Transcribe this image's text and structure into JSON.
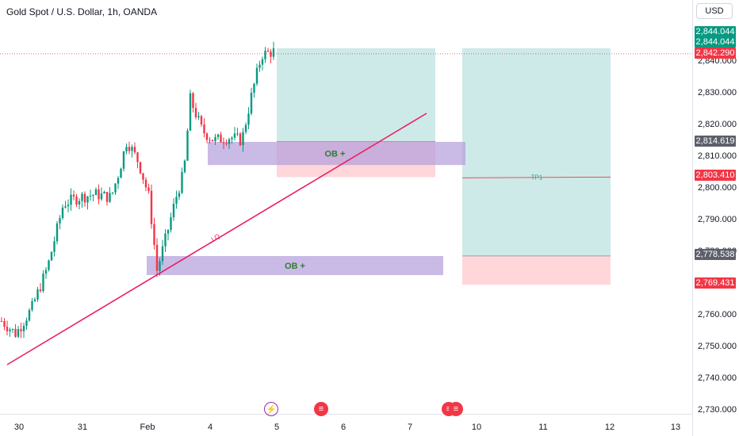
{
  "header": {
    "title": "Gold Spot / U.S. Dollar, 1h, OANDA",
    "currency": "USD"
  },
  "chart_data": {
    "type": "candlestick",
    "y_axis": {
      "range": [
        2726,
        2848
      ],
      "ticks": [
        {
          "value": 2840,
          "label": "2,840.000"
        },
        {
          "value": 2830,
          "label": "2,830.000"
        },
        {
          "value": 2820,
          "label": "2,820.000"
        },
        {
          "value": 2810,
          "label": "2,810.000"
        },
        {
          "value": 2800,
          "label": "2,800.000"
        },
        {
          "value": 2790,
          "label": "2,790.000"
        },
        {
          "value": 2780,
          "label": "2,780.000"
        },
        {
          "value": 2760,
          "label": "2,760.000"
        },
        {
          "value": 2750,
          "label": "2,750.000"
        },
        {
          "value": 2740,
          "label": "2,740.000"
        },
        {
          "value": 2730,
          "label": "2,730.000"
        }
      ]
    },
    "x_axis": {
      "ticks": [
        "30",
        "31",
        "Feb",
        "4",
        "5",
        "6",
        "7",
        "10",
        "11",
        "12",
        "13"
      ]
    },
    "price_badges": [
      {
        "value": 2844.044,
        "label": "2,844.044",
        "color": "#089981"
      },
      {
        "value": 2844.044,
        "label": "2,844.044",
        "color": "#089981"
      },
      {
        "value": 2842.29,
        "label": "2,842.290",
        "color": "#f23645"
      },
      {
        "value": 2814.619,
        "label": "2,814.619",
        "color": "#5d606b"
      },
      {
        "value": 2803.41,
        "label": "2,803.410",
        "color": "#f23645"
      },
      {
        "value": 2778.538,
        "label": "2,778.538",
        "color": "#5d606b"
      },
      {
        "value": 2769.431,
        "label": "2,769.431",
        "color": "#f23645"
      }
    ],
    "current_price": 2842.29,
    "annotations": {
      "order_blocks": [
        {
          "label": "OB +",
          "top": 2814.5,
          "bottom": 2807.2
        },
        {
          "label": "OB +",
          "top": 2778.5,
          "bottom": 2772.5
        }
      ],
      "positions": [
        {
          "entry": 2814.619,
          "target": 2844.044,
          "stop": 2803.41
        },
        {
          "entry": 2778.538,
          "target": 2844.044,
          "stop": 2769.431,
          "tp_label": "TP1",
          "tp_value": 2803.41
        }
      ],
      "trendline_label": "LQ"
    },
    "colors": {
      "up": "#089981",
      "down": "#f23645",
      "ob_zone": "#b39ddb",
      "profit_zone": "#b2dfdb",
      "loss_zone": "#ffcdd2",
      "trendline": "#e91e63"
    },
    "events": [
      "flash-event-icon",
      "us-flag-icon",
      "us-flag-icon"
    ]
  }
}
